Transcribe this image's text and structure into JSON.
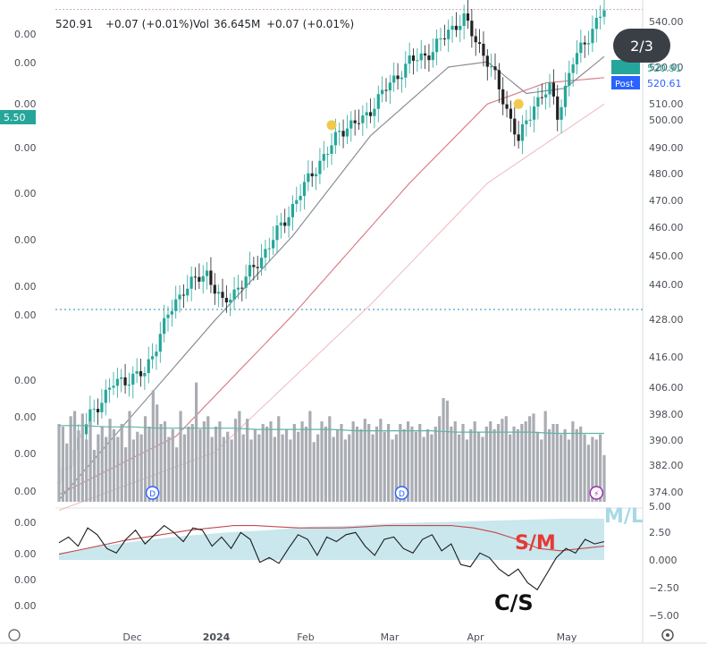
{
  "header": {
    "price_fragment": "520.91",
    "change": "+0.07 (+0.01%)",
    "vol_label": "Vol",
    "vol_value": "36.645M",
    "vol_change": "+0.07 (+0.01%)"
  },
  "pager": "2/3",
  "price_badges": {
    "last": "520.91",
    "post_label": "Post",
    "post_value": "520.61",
    "left_tag": "5.50"
  },
  "annotations": {
    "sm": "S/M",
    "cs": "C/S",
    "ml": "M/L"
  },
  "colors": {
    "up": "#26a69a",
    "down": "#222222",
    "ma_fast": "#8a8f96",
    "ma_slow": "#d9808a",
    "ma_slowest": "#f0b8c0",
    "volume": "#a9acb2",
    "vol_ma": "#5fb3a8",
    "band": "#bfe3ea",
    "osc": "#1c1c1c",
    "osc_signal": "#c24a50",
    "accent_blue": "#2962ff",
    "green_tag": "#26a69a",
    "marker": "#f2c94c",
    "red_text": "#e53935"
  },
  "chart_data": [
    {
      "type": "candlestick",
      "pane": "price",
      "x_ticks": [
        "Dec",
        "2024",
        "Feb",
        "Mar",
        "Apr",
        "May"
      ],
      "y_ticks_right": [
        "540.00",
        "520.00",
        "510.00",
        "500.00",
        "490.00",
        "480.00",
        "470.00",
        "460.00",
        "450.00",
        "440.00",
        "428.00"
      ],
      "y_ticks_left_partial": [
        "0.00",
        "0.00",
        "0.00",
        "0.00",
        "0.00",
        "0.00",
        "0.00",
        "0.00"
      ],
      "last_price": 520.91,
      "post_price": 520.61,
      "dotted_level": 429,
      "close_path": [
        {
          "t": 0,
          "v": 431
        },
        {
          "t": 8,
          "v": 444
        },
        {
          "t": 14,
          "v": 450
        },
        {
          "t": 22,
          "v": 452
        },
        {
          "t": 28,
          "v": 463
        },
        {
          "t": 32,
          "v": 468
        },
        {
          "t": 38,
          "v": 471
        },
        {
          "t": 42,
          "v": 465
        },
        {
          "t": 48,
          "v": 470
        },
        {
          "t": 52,
          "v": 474
        },
        {
          "t": 58,
          "v": 481
        },
        {
          "t": 65,
          "v": 490
        },
        {
          "t": 70,
          "v": 495
        },
        {
          "t": 72,
          "v": 498
        },
        {
          "t": 78,
          "v": 500
        },
        {
          "t": 84,
          "v": 506
        },
        {
          "t": 90,
          "v": 511
        },
        {
          "t": 96,
          "v": 513
        },
        {
          "t": 100,
          "v": 517
        },
        {
          "t": 104,
          "v": 519
        },
        {
          "t": 108,
          "v": 514
        },
        {
          "t": 112,
          "v": 508
        },
        {
          "t": 116,
          "v": 500
        },
        {
          "t": 118,
          "v": 496
        },
        {
          "t": 122,
          "v": 503
        },
        {
          "t": 126,
          "v": 506
        },
        {
          "t": 128,
          "v": 501
        },
        {
          "t": 132,
          "v": 511
        },
        {
          "t": 136,
          "v": 516
        },
        {
          "t": 140,
          "v": 520.91
        }
      ],
      "ma_fast": [
        {
          "t": 0,
          "v": 428
        },
        {
          "t": 20,
          "v": 445
        },
        {
          "t": 40,
          "v": 462
        },
        {
          "t": 60,
          "v": 478
        },
        {
          "t": 80,
          "v": 497
        },
        {
          "t": 100,
          "v": 510
        },
        {
          "t": 110,
          "v": 511
        },
        {
          "t": 120,
          "v": 505
        },
        {
          "t": 130,
          "v": 506
        },
        {
          "t": 140,
          "v": 512
        }
      ],
      "ma_slow": [
        {
          "t": 0,
          "v": 429
        },
        {
          "t": 30,
          "v": 440
        },
        {
          "t": 60,
          "v": 463
        },
        {
          "t": 90,
          "v": 488
        },
        {
          "t": 110,
          "v": 503
        },
        {
          "t": 125,
          "v": 507
        },
        {
          "t": 140,
          "v": 508
        }
      ],
      "ma_slowest": [
        {
          "t": 0,
          "v": 426
        },
        {
          "t": 40,
          "v": 437
        },
        {
          "t": 80,
          "v": 465
        },
        {
          "t": 110,
          "v": 488
        },
        {
          "t": 140,
          "v": 503
        }
      ],
      "markers": [
        {
          "t": 70,
          "v": 499
        },
        {
          "t": 118,
          "v": 503
        }
      ]
    },
    {
      "type": "bar",
      "pane": "volume",
      "y_ticks_right": [
        "416.00",
        "406.00",
        "398.00",
        "390.00",
        "382.00",
        "374.00"
      ],
      "y_ticks_left_partial": [
        "0.00",
        "0.00",
        "0.00",
        "0.00"
      ],
      "values": [
        60,
        58,
        45,
        66,
        70,
        55,
        68,
        48,
        62,
        40,
        52,
        58,
        50,
        64,
        56,
        50,
        60,
        42,
        70,
        48,
        54,
        52,
        66,
        58,
        86,
        75,
        60,
        62,
        50,
        56,
        42,
        70,
        52,
        58,
        60,
        92,
        56,
        62,
        66,
        50,
        58,
        62,
        50,
        54,
        48,
        64,
        70,
        52,
        64,
        48,
        56,
        52,
        60,
        58,
        62,
        50,
        66,
        52,
        56,
        48,
        60,
        54,
        62,
        58,
        70,
        46,
        52,
        62,
        58,
        66,
        50,
        56,
        60,
        48,
        52,
        62,
        58,
        56,
        64,
        60,
        52,
        58,
        64,
        54,
        60,
        48,
        52,
        60,
        56,
        62,
        58,
        54,
        60,
        50,
        56,
        52,
        58,
        66,
        80,
        78,
        58,
        62,
        52,
        60,
        48,
        56,
        62,
        54,
        50,
        58,
        62,
        56,
        60,
        64,
        66,
        52,
        58,
        56,
        60,
        62,
        66,
        68,
        54,
        48,
        70,
        56,
        60,
        60,
        52,
        56,
        48,
        62,
        56,
        58,
        52,
        44,
        50,
        48,
        52,
        36
      ],
      "ma": [
        56,
        56,
        55,
        55,
        54,
        54,
        54,
        54,
        53,
        53,
        53,
        53,
        52,
        52,
        52,
        52,
        51,
        51,
        51,
        51,
        50,
        50,
        50
      ],
      "event_icons": [
        {
          "t": 24,
          "label": "D"
        },
        {
          "t": 88,
          "label": "D"
        },
        {
          "t": 138,
          "label": "⚡"
        }
      ]
    },
    {
      "type": "line",
      "pane": "oscillator",
      "y_ticks_right": [
        "5.00",
        "2.50",
        "0.000",
        "−2.50",
        "−5.00"
      ],
      "y_ticks_left_partial": [
        "0.00",
        "0.00",
        "0.00",
        "0.00"
      ],
      "ylim": [
        -5,
        5
      ],
      "series": [
        {
          "name": "C/S",
          "values": [
            1.5,
            2.0,
            1.2,
            2.8,
            2.2,
            1.0,
            0.6,
            1.8,
            2.6,
            1.4,
            2.2,
            3.0,
            2.4,
            1.6,
            2.8,
            2.6,
            1.2,
            2.0,
            1.0,
            2.4,
            1.8,
            -0.2,
            0.2,
            -0.3,
            1.0,
            2.2,
            1.8,
            0.4,
            2.0,
            1.6,
            2.2,
            2.4,
            1.2,
            0.4,
            1.8,
            2.0,
            1.0,
            0.6,
            1.8,
            2.2,
            0.8,
            1.4,
            -0.4,
            -0.6,
            0.6,
            0.2,
            -0.8,
            -1.4,
            -0.8,
            -2.0,
            -2.6,
            -1.2,
            0.2,
            1.0,
            0.6,
            1.8,
            1.4,
            1.6
          ]
        },
        {
          "name": "S/M",
          "values": [
            0.5,
            0.9,
            1.3,
            1.7,
            2.0,
            2.3,
            2.6,
            2.8,
            3.0,
            3.0,
            2.9,
            2.8,
            2.8,
            2.8,
            2.9,
            3.0,
            3.0,
            3.0,
            3.0,
            2.8,
            2.4,
            1.8,
            1.0,
            0.8,
            1.0,
            1.2
          ]
        },
        {
          "name": "M/L",
          "band_upper": [
            0.6,
            1.2,
            1.7,
            2.1,
            2.4,
            2.6,
            2.9,
            3.0,
            3.2,
            3.3,
            3.4,
            3.5,
            3.6,
            3.6
          ],
          "band_lower": [
            0,
            0,
            0,
            0,
            0,
            0,
            0,
            0,
            0,
            0,
            0,
            0,
            0,
            0
          ]
        }
      ]
    }
  ]
}
